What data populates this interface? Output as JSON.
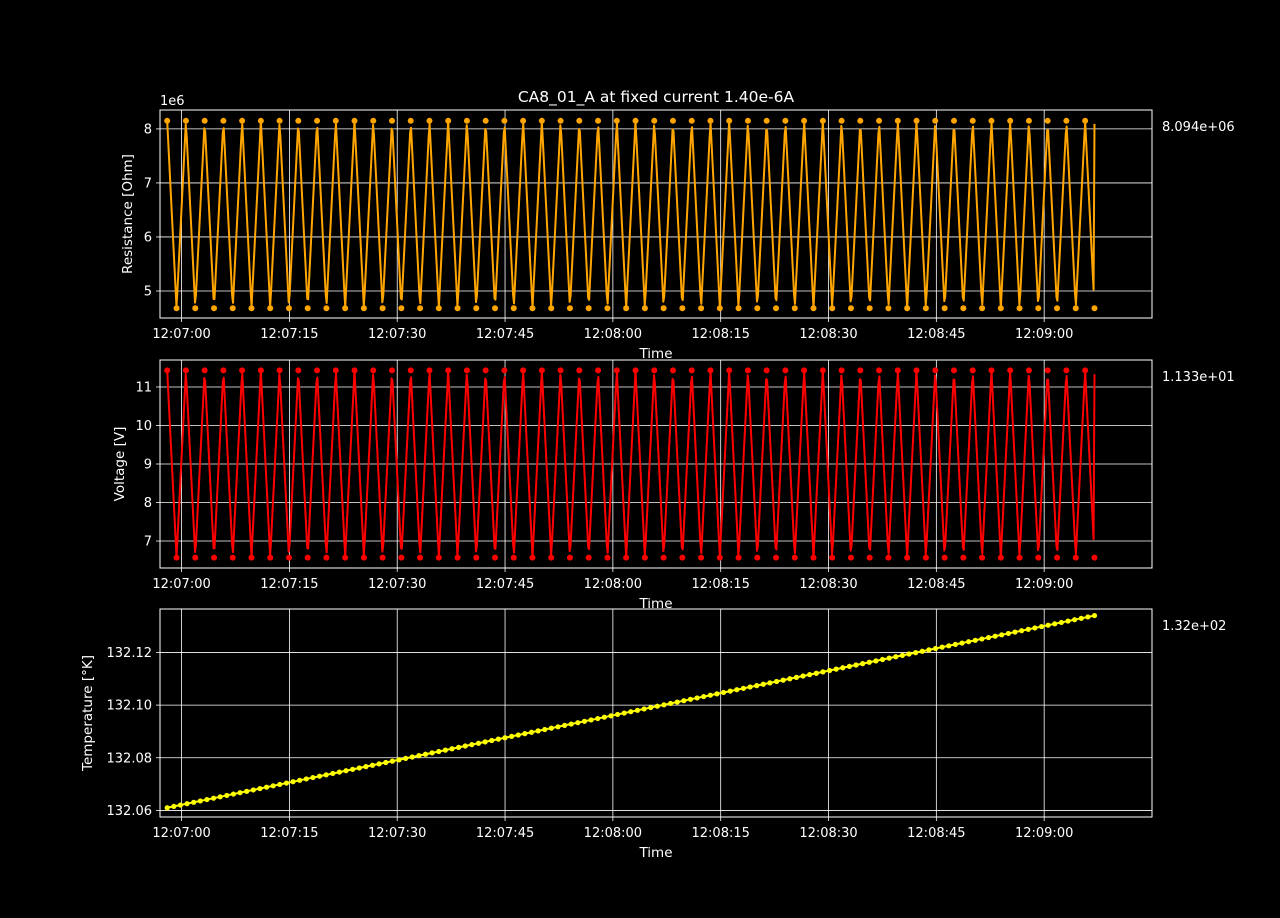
{
  "colors": {
    "background": "#000000",
    "foreground": "#ffffff",
    "grid": "#ffffff"
  },
  "chart_data": [
    {
      "type": "line",
      "title": "CA8_01_A at fixed current 1.40e-6A",
      "xlabel": "Time",
      "ylabel": "Resistance [Ohm]",
      "y_offset_label": "1e6",
      "annotation": "8.094e+06",
      "color": "#ffa500",
      "grid": true,
      "xlim": [
        "12:06:57",
        "12:09:15"
      ],
      "ylim": [
        4.5,
        8.35
      ],
      "x_ticks": [
        "12:07:00",
        "12:07:15",
        "12:07:30",
        "12:07:45",
        "12:08:00",
        "12:08:15",
        "12:08:30",
        "12:08:45",
        "12:09:00"
      ],
      "y_ticks": [
        5,
        6,
        7,
        8
      ],
      "signal": {
        "kind": "oscillation",
        "x_start": "12:06:58",
        "x_end": "12:09:07",
        "cycles": 49.5,
        "high": 8.15,
        "low": 4.68,
        "last_value": 8.094
      }
    },
    {
      "type": "line",
      "title": "",
      "xlabel": "Time",
      "ylabel": "Voltage [V]",
      "annotation": "1.133e+01",
      "color": "#ff0000",
      "grid": true,
      "xlim": [
        "12:06:57",
        "12:09:15"
      ],
      "ylim": [
        6.3,
        11.7
      ],
      "x_ticks": [
        "12:07:00",
        "12:07:15",
        "12:07:30",
        "12:07:45",
        "12:08:00",
        "12:08:15",
        "12:08:30",
        "12:08:45",
        "12:09:00"
      ],
      "y_ticks": [
        7,
        8,
        9,
        10,
        11
      ],
      "signal": {
        "kind": "oscillation",
        "x_start": "12:06:58",
        "x_end": "12:09:07",
        "cycles": 49.5,
        "high": 11.43,
        "low": 6.57,
        "last_value": 11.33
      }
    },
    {
      "type": "line",
      "title": "",
      "xlabel": "Time",
      "ylabel": "Temperature [°K]",
      "annotation": "1.32e+02",
      "color": "#ffff00",
      "grid": true,
      "xlim": [
        "12:06:57",
        "12:09:15"
      ],
      "ylim": [
        132.0575,
        132.1365
      ],
      "x_ticks": [
        "12:07:00",
        "12:07:15",
        "12:07:30",
        "12:07:45",
        "12:08:00",
        "12:08:15",
        "12:08:30",
        "12:08:45",
        "12:09:00"
      ],
      "y_ticks": [
        "132.06",
        "132.08",
        "132.10",
        "132.12"
      ],
      "signal": {
        "kind": "linear",
        "x_start": "12:06:58",
        "x_end": "12:09:07",
        "start": 132.061,
        "end": 132.134
      }
    }
  ]
}
